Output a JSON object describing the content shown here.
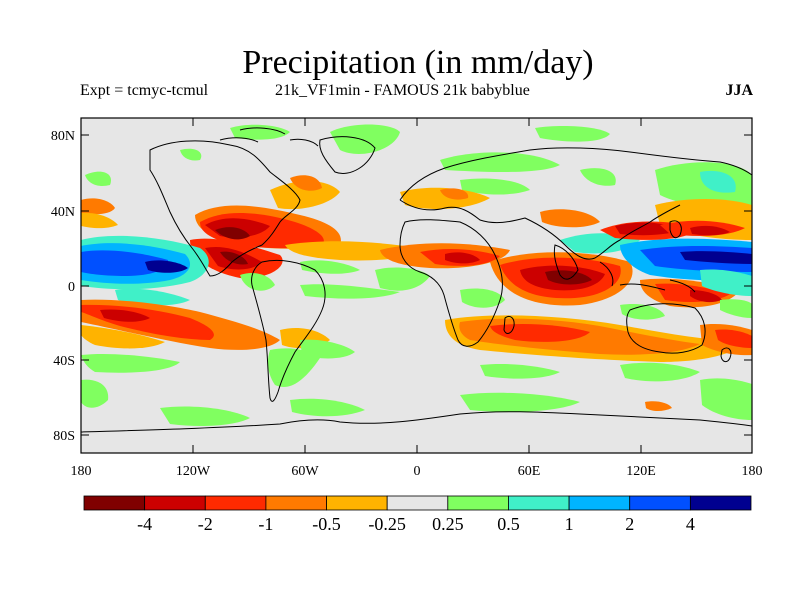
{
  "title": "Precipitation (in mm/day)",
  "subtitle_left": "Expt = tcmyc-tcmul",
  "subtitle_center": "21k_VF1min - FAMOUS 21k babyblue",
  "season": "JJA",
  "lat_ticks": [
    "80N",
    "40N",
    "0",
    "40S",
    "80S"
  ],
  "lon_ticks": [
    "180",
    "120W",
    "60W",
    "0",
    "60E",
    "120E",
    "180"
  ],
  "colorbar": {
    "colors": [
      "#800000",
      "#cc0000",
      "#ff2a00",
      "#ff7a00",
      "#ffb300",
      "#e6e6e6",
      "#80ff60",
      "#40f0c8",
      "#00b4ff",
      "#0050ff",
      "#000090"
    ],
    "labels": [
      "-4",
      "-2",
      "-1",
      "-0.5",
      "-0.25",
      "0.25",
      "0.5",
      "1",
      "2",
      "4"
    ]
  },
  "colors": {
    "land_outline": "#000000",
    "neutral": "#e6e6e6"
  }
}
